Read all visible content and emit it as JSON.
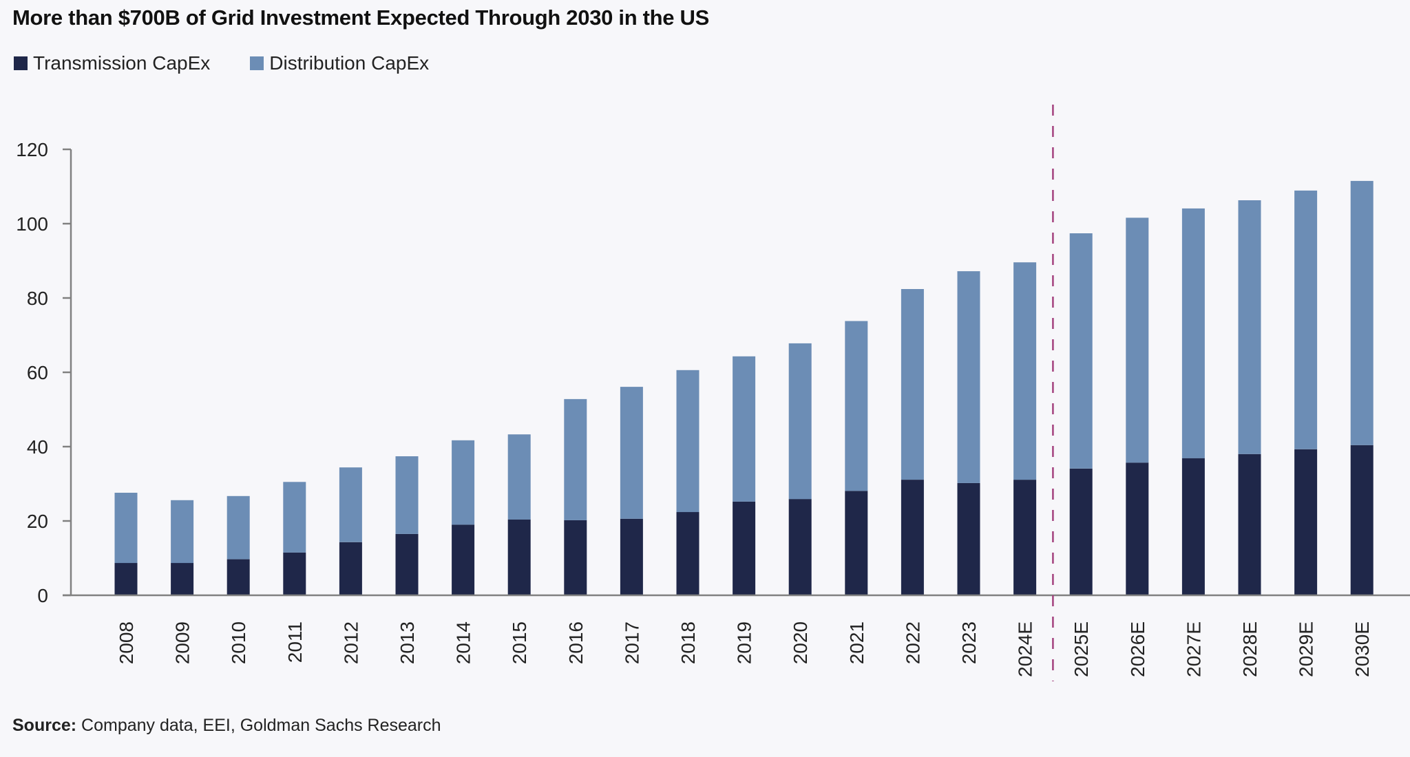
{
  "chart_data": {
    "type": "bar",
    "stacked": true,
    "title": "More than $700B of Grid Investment Expected Through 2030 in the US",
    "xlabel": "",
    "ylabel": "",
    "ylim": [
      0,
      120
    ],
    "yticks": [
      0,
      20,
      40,
      60,
      80,
      100,
      120
    ],
    "grid": false,
    "legend_position": "top-left",
    "categories": [
      "2008",
      "2009",
      "2010",
      "2011",
      "2012",
      "2013",
      "2014",
      "2015",
      "2016",
      "2017",
      "2018",
      "2019",
      "2020",
      "2021",
      "2022",
      "2023",
      "2024E",
      "2025E",
      "2026E",
      "2027E",
      "2028E",
      "2029E",
      "2030E"
    ],
    "series": [
      {
        "name": "Transmission CapEx",
        "color": "#1f2749",
        "values": [
          8.7,
          8.7,
          9.7,
          11.5,
          14.3,
          16.5,
          19.0,
          20.4,
          20.2,
          20.6,
          22.4,
          25.2,
          25.9,
          28.1,
          31.1,
          30.2,
          31.1,
          34.1,
          35.7,
          36.9,
          38.0,
          39.3,
          40.4
        ]
      },
      {
        "name": "Distribution CapEx",
        "color": "#6c8db5",
        "values": [
          18.9,
          16.9,
          17.0,
          19.0,
          20.1,
          20.9,
          22.7,
          22.9,
          32.6,
          35.5,
          38.2,
          39.1,
          41.9,
          45.7,
          51.3,
          57.0,
          58.5,
          63.3,
          65.9,
          67.2,
          68.3,
          69.6,
          71.1
        ]
      }
    ],
    "annotations": [
      {
        "type": "vertical-dashed-line",
        "between": [
          "2024E",
          "2025E"
        ],
        "color": "#a3407d",
        "meaning": "actual vs. estimate divider"
      }
    ],
    "source_label": "Source:",
    "source_text": "Company data, EEI, Goldman Sachs Research"
  },
  "colors": {
    "background": "#f7f7fa",
    "axis": "#808080"
  }
}
